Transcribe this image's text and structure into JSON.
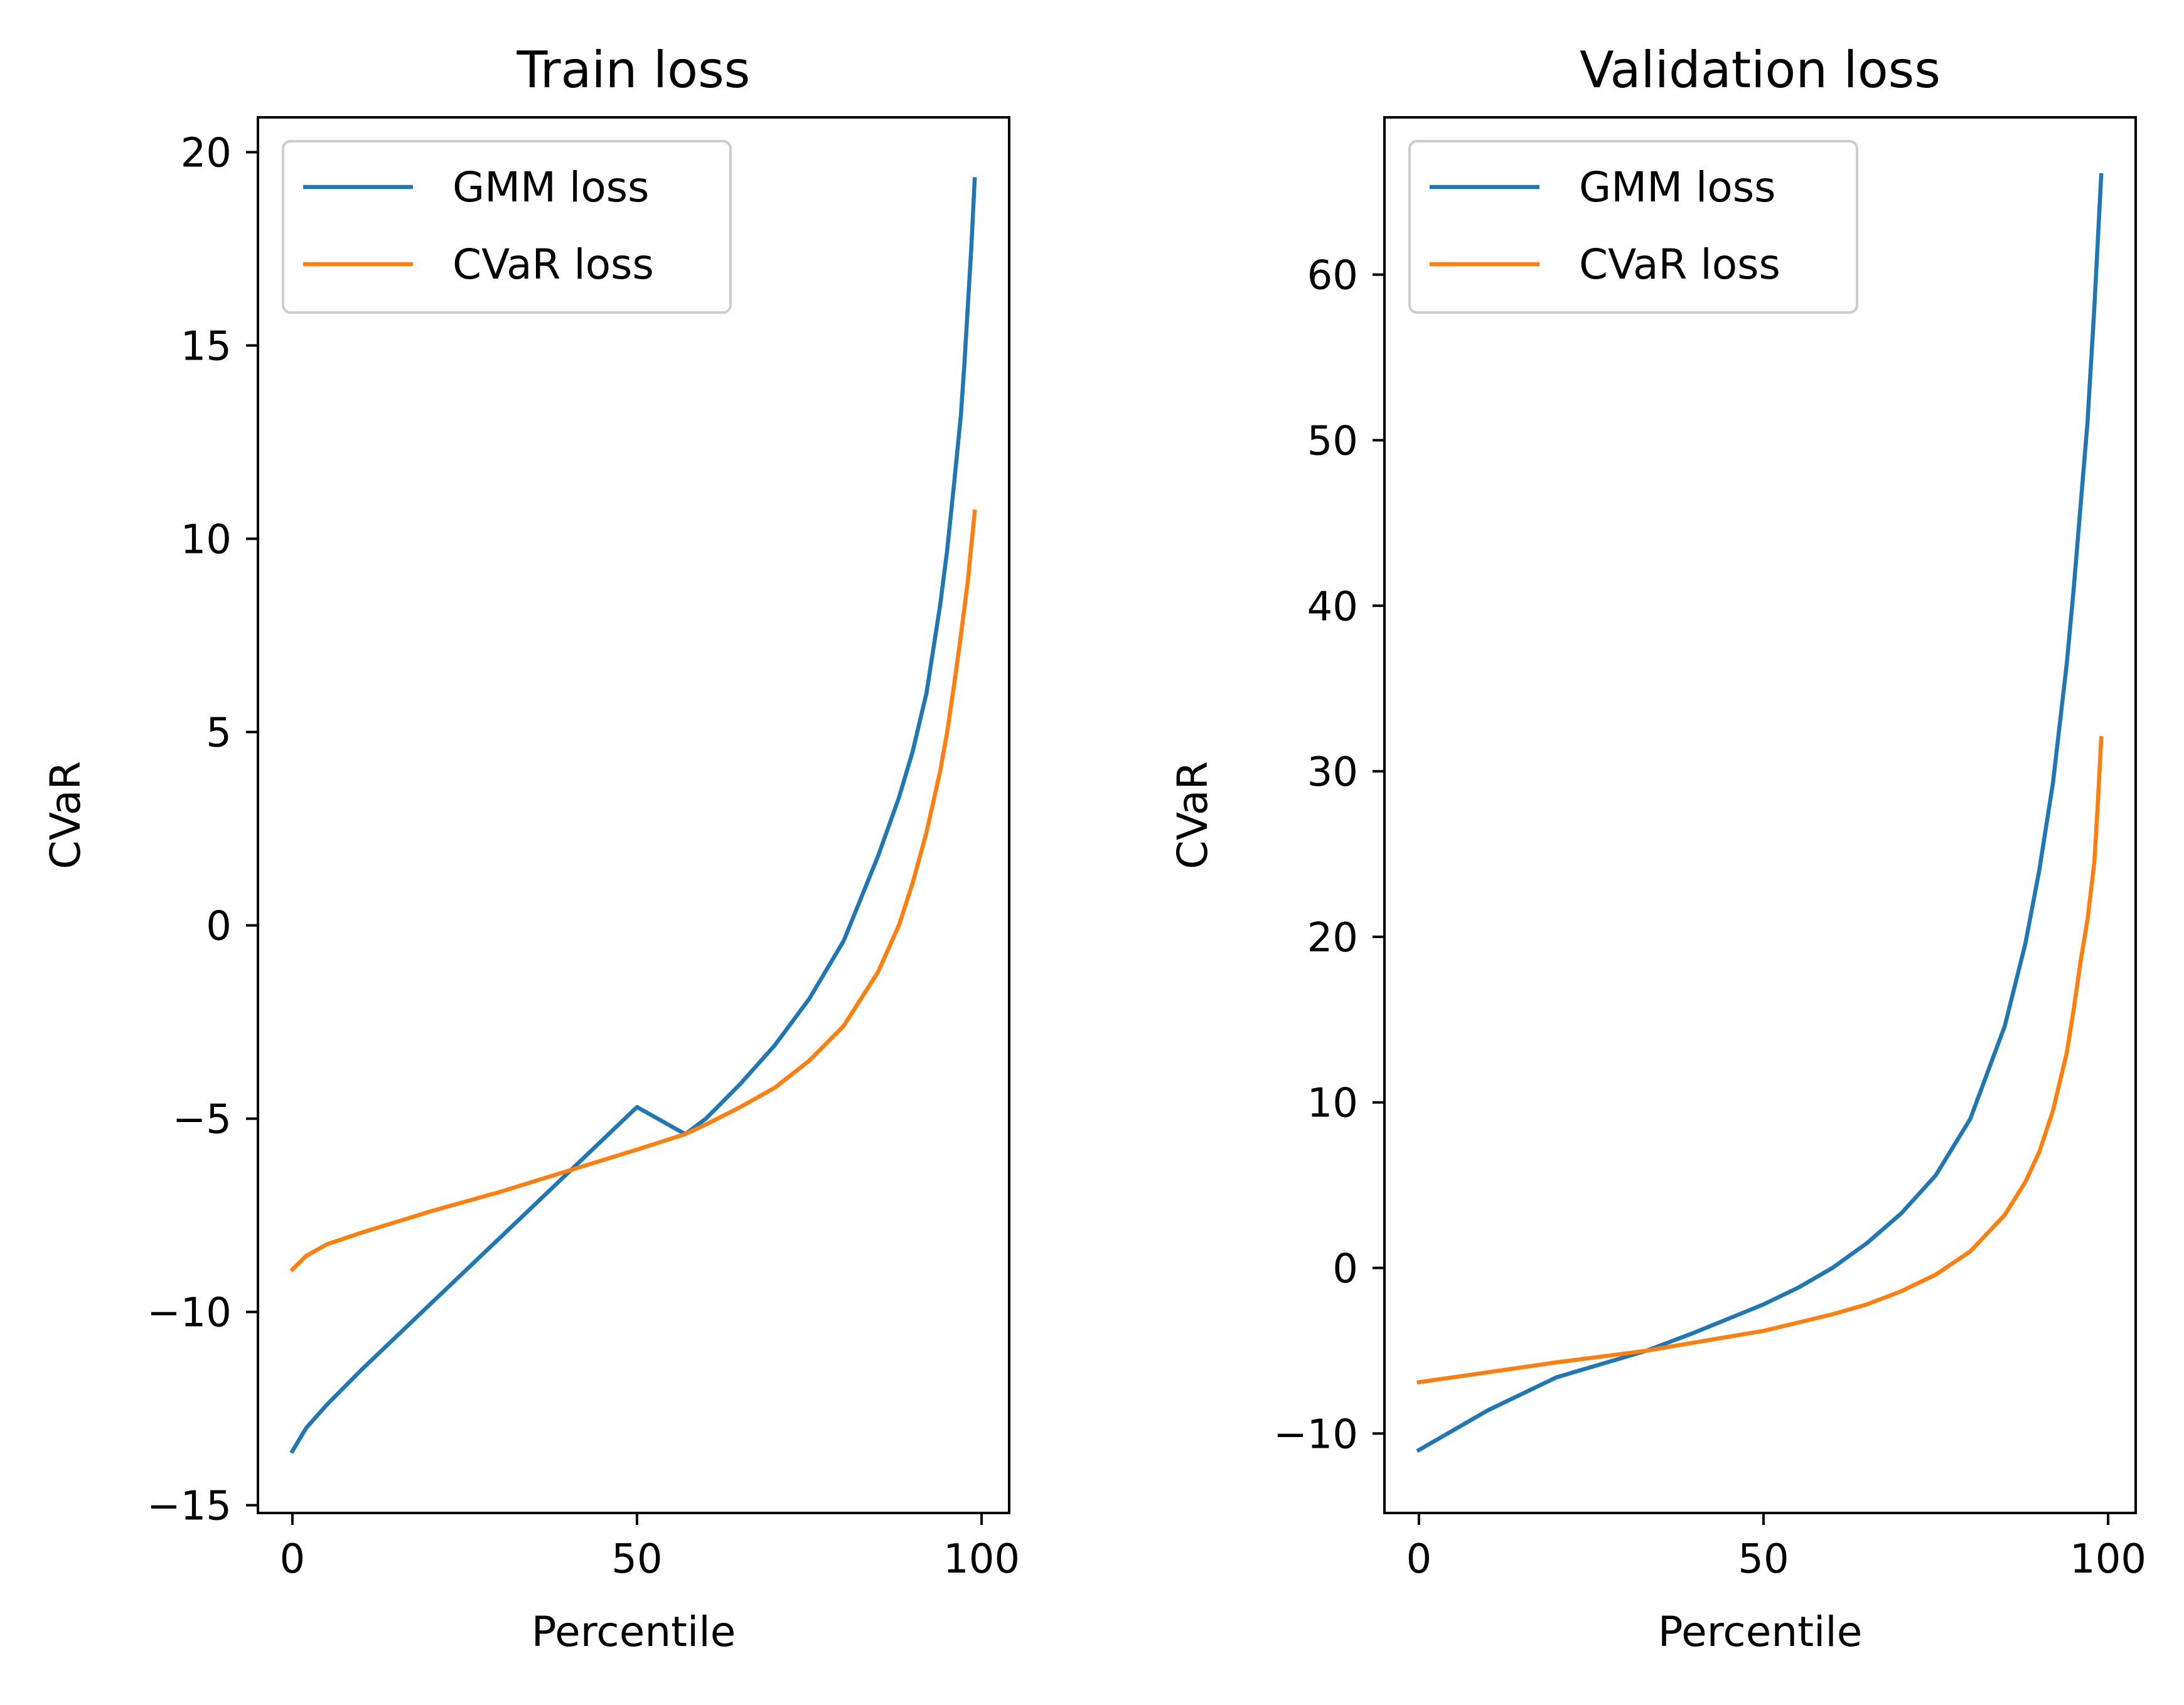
{
  "chart_data": [
    {
      "type": "line",
      "title": "Train loss",
      "xlabel": "Percentile",
      "ylabel": "CVaR",
      "xlim": [
        -5,
        104
      ],
      "ylim": [
        -15.2,
        20.9
      ],
      "xticks": [
        0,
        50,
        100
      ],
      "yticks": [
        -15,
        -10,
        -5,
        0,
        5,
        10,
        15,
        20
      ],
      "xtick_labels": [
        "0",
        "50",
        "100"
      ],
      "ytick_labels": [
        "−15",
        "−10",
        "−5",
        "0",
        "5",
        "10",
        "15",
        "20"
      ],
      "grid": false,
      "legend": "top-left",
      "series": [
        {
          "name": "GMM loss",
          "color": "#1f77b4",
          "x": [
            0,
            2,
            5,
            10,
            20,
            30,
            40,
            50,
            57,
            60,
            65,
            70,
            75,
            80,
            85,
            88,
            90,
            92,
            94,
            95,
            96,
            97,
            97.5,
            98,
            98.5,
            99
          ],
          "y": [
            -13.6,
            -13.0,
            -12.4,
            -11.5,
            -9.8,
            -8.1,
            -6.4,
            -4.7,
            -5.4,
            -5.0,
            -4.1,
            -3.1,
            -1.9,
            -0.4,
            1.8,
            3.3,
            4.5,
            6.0,
            8.3,
            9.7,
            11.4,
            13.2,
            14.5,
            16.0,
            17.5,
            19.3
          ]
        },
        {
          "name": "CVaR loss",
          "color": "#ff7f0e",
          "x": [
            0,
            2,
            5,
            10,
            20,
            30,
            40,
            50,
            57,
            60,
            65,
            70,
            75,
            80,
            85,
            88,
            90,
            92,
            94,
            95,
            96,
            97,
            98,
            98.5,
            99
          ],
          "y": [
            -8.9,
            -8.55,
            -8.25,
            -7.95,
            -7.4,
            -6.9,
            -6.35,
            -5.8,
            -5.4,
            -5.15,
            -4.7,
            -4.2,
            -3.5,
            -2.6,
            -1.2,
            0.0,
            1.1,
            2.4,
            4.0,
            5.0,
            6.2,
            7.5,
            8.9,
            9.8,
            10.7
          ]
        }
      ]
    },
    {
      "type": "line",
      "title": "Validation loss",
      "xlabel": "Percentile",
      "ylabel": "CVaR",
      "xlim": [
        -5,
        104
      ],
      "ylim": [
        -14.8,
        69.5
      ],
      "xticks": [
        0,
        50,
        100
      ],
      "yticks": [
        -10,
        0,
        10,
        20,
        30,
        40,
        50,
        60
      ],
      "xtick_labels": [
        "0",
        "50",
        "100"
      ],
      "ytick_labels": [
        "−10",
        "0",
        "10",
        "20",
        "30",
        "40",
        "50",
        "60"
      ],
      "grid": false,
      "legend": "top-left",
      "series": [
        {
          "name": "GMM loss",
          "color": "#1f77b4",
          "x": [
            0,
            5,
            10,
            20,
            33,
            40,
            50,
            55,
            60,
            65,
            70,
            75,
            80,
            85,
            88,
            90,
            92,
            94,
            95,
            96,
            97,
            97.5,
            98,
            98.5,
            99
          ],
          "y": [
            -11.0,
            -9.8,
            -8.6,
            -6.6,
            -5.0,
            -3.9,
            -2.2,
            -1.2,
            0.0,
            1.5,
            3.3,
            5.6,
            9.0,
            14.6,
            19.6,
            24.0,
            29.3,
            36.5,
            41.0,
            46.0,
            51.0,
            54.5,
            58.0,
            62.0,
            66.0
          ]
        },
        {
          "name": "CVaR loss",
          "color": "#ff7f0e",
          "x": [
            0,
            10,
            20,
            33,
            40,
            50,
            55,
            60,
            65,
            70,
            75,
            80,
            85,
            88,
            90,
            92,
            94,
            95,
            96,
            97,
            98,
            98.5,
            99
          ],
          "y": [
            -6.9,
            -6.3,
            -5.7,
            -5.0,
            -4.5,
            -3.8,
            -3.3,
            -2.8,
            -2.2,
            -1.4,
            -0.4,
            1.0,
            3.2,
            5.2,
            7.0,
            9.5,
            13.0,
            15.6,
            18.5,
            21.0,
            24.5,
            28.0,
            32.0
          ]
        }
      ]
    }
  ]
}
